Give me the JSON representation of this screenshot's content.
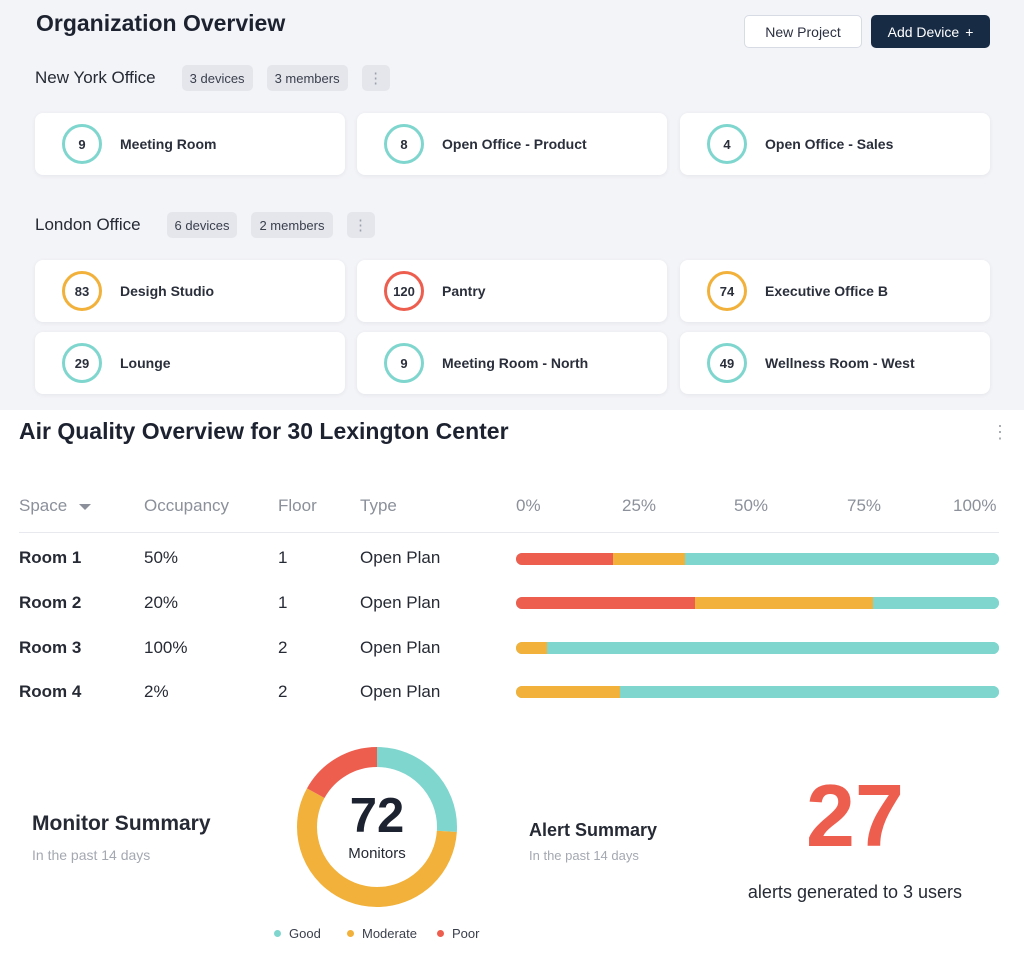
{
  "header": {
    "title": "Organization Overview",
    "new_project_label": "New Project",
    "add_device_label": "Add Device",
    "add_device_icon": "+"
  },
  "offices": [
    {
      "name": "New York Office",
      "devices": "3 devices",
      "members": "3 members",
      "rooms": [
        {
          "value": "9",
          "name": "Meeting Room",
          "status": "good"
        },
        {
          "value": "8",
          "name": "Open Office - Product",
          "status": "good"
        },
        {
          "value": "4",
          "name": "Open Office - Sales",
          "status": "good"
        }
      ]
    },
    {
      "name": "London Office",
      "devices": "6 devices",
      "members": "2 members",
      "rooms": [
        {
          "value": "83",
          "name": "Desigh Studio",
          "status": "moderate"
        },
        {
          "value": "120",
          "name": "Pantry",
          "status": "poor"
        },
        {
          "value": "74",
          "name": "Executive Office B",
          "status": "moderate"
        },
        {
          "value": "29",
          "name": "Lounge",
          "status": "good"
        },
        {
          "value": "9",
          "name": "Meeting Room - North",
          "status": "good"
        },
        {
          "value": "49",
          "name": "Wellness Room - West",
          "status": "good"
        }
      ]
    }
  ],
  "air_quality": {
    "title": "Air Quality Overview for 30 Lexington Center",
    "columns": [
      "Space",
      "Occupancy",
      "Floor",
      "Type"
    ],
    "scale_labels": [
      "0%",
      "25%",
      "50%",
      "75%",
      "100%"
    ],
    "rows": [
      {
        "space": "Room 1",
        "occupancy": "50%",
        "floor": "1",
        "type": "Open Plan",
        "poor": 0.2,
        "moderate": 0.15
      },
      {
        "space": "Room 2",
        "occupancy": "20%",
        "floor": "1",
        "type": "Open Plan",
        "poor": 0.37,
        "moderate": 0.37
      },
      {
        "space": "Room 3",
        "occupancy": "100%",
        "floor": "2",
        "type": "Open Plan",
        "poor": 0,
        "moderate": 0.065
      },
      {
        "space": "Room 4",
        "occupancy": "2%",
        "floor": "2",
        "type": "Open Plan",
        "poor": 0,
        "moderate": 0.215
      }
    ]
  },
  "monitor_summary": {
    "title": "Monitor Summary",
    "subtitle": "In the past 14 days",
    "count": "72",
    "count_label": "Monitors",
    "segments": [
      {
        "name": "Good",
        "fraction": 0.26,
        "color": "#7fd6ce"
      },
      {
        "name": "Moderate",
        "fraction": 0.57,
        "color": "#f1b13a"
      },
      {
        "name": "Poor",
        "fraction": 0.17,
        "color": "#ee5e4f"
      }
    ],
    "legend": [
      "Good",
      "Moderate",
      "Poor"
    ]
  },
  "alert_summary": {
    "title": "Alert Summary",
    "subtitle": "In the past 14 days",
    "count": "27",
    "description": "alerts generated to 3 users"
  },
  "colors": {
    "good": "#7fd6ce",
    "moderate": "#f1b13a",
    "poor": "#ee5e4f",
    "primary": "#172b45"
  }
}
